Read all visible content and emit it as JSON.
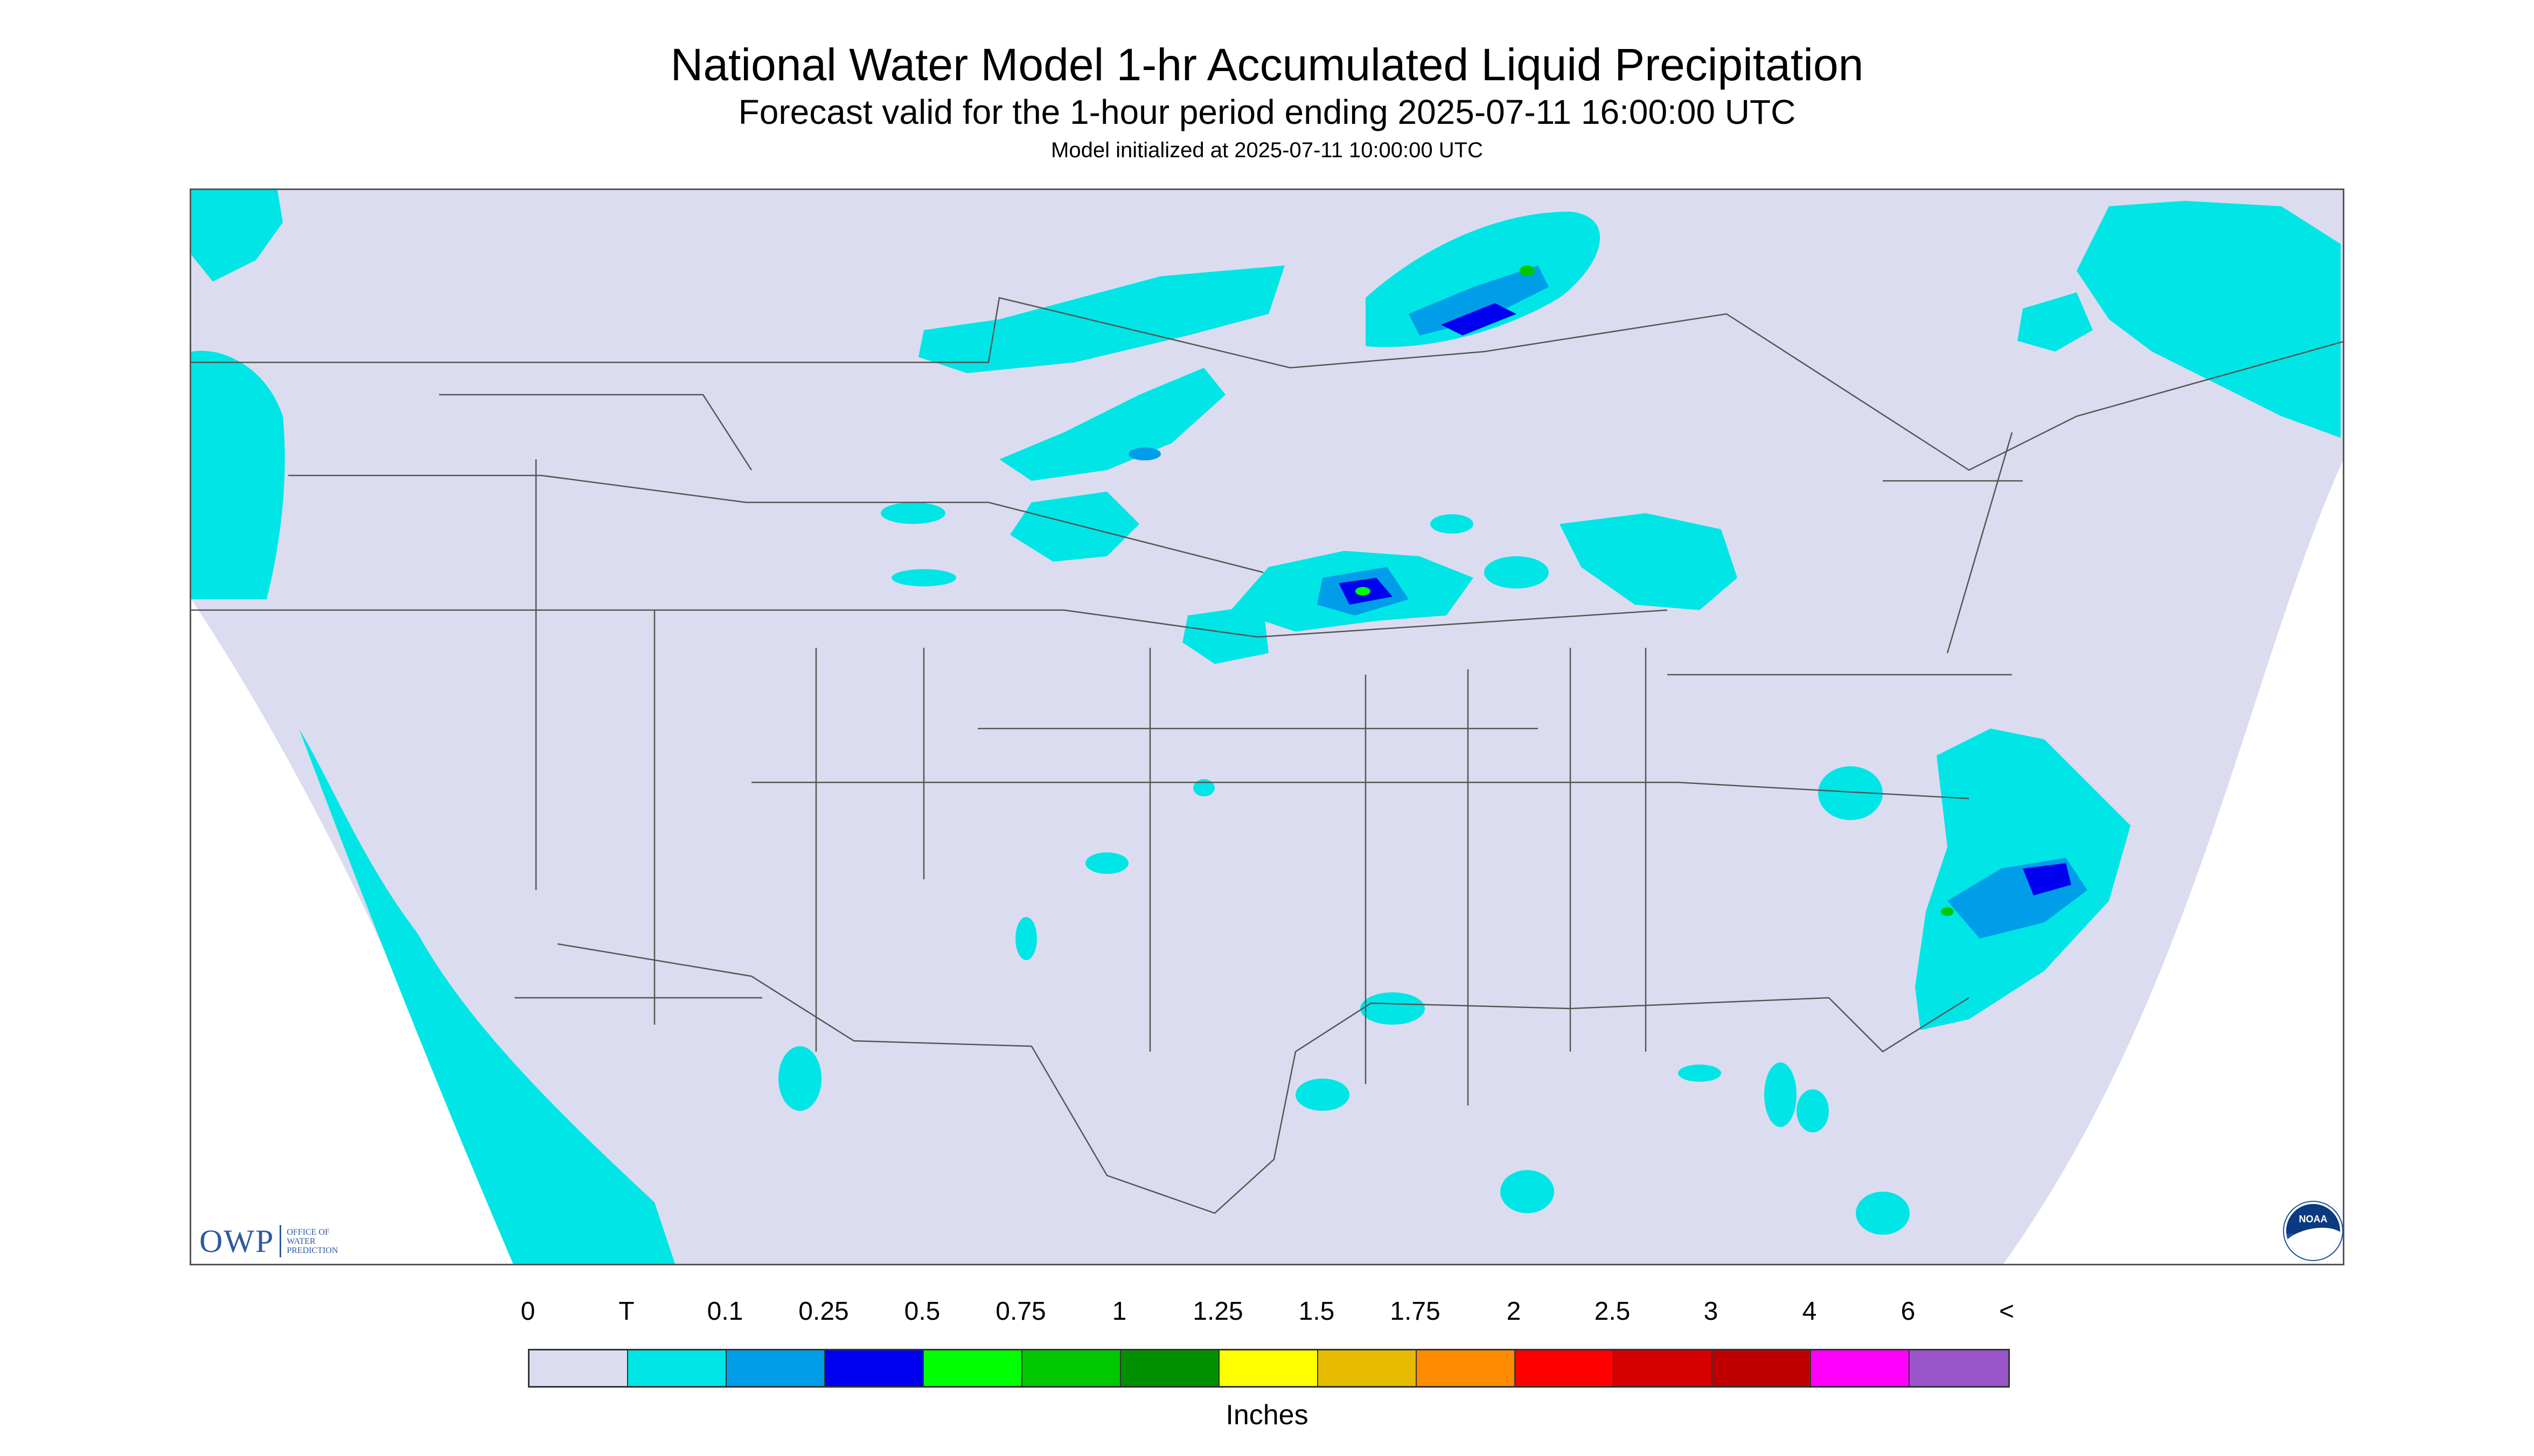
{
  "header": {
    "title": "National Water Model 1-hr Accumulated Liquid Precipitation",
    "subtitle": "Forecast valid for the 1-hour period ending 2025-07-11 16:00:00 UTC",
    "init_line": "Model initialized at 2025-07-11 10:00:00 UTC"
  },
  "logos": {
    "owp_letters": "OWP",
    "owp_small": [
      "OFFICE OF",
      "WATER",
      "PREDICTION"
    ],
    "noaa_text": "NOAA"
  },
  "legend": {
    "labels": [
      "0",
      "T",
      "0.1",
      "0.25",
      "0.5",
      "0.75",
      "1",
      "1.25",
      "1.5",
      "1.75",
      "2",
      "2.5",
      "3",
      "4",
      "6",
      "<"
    ],
    "colors": [
      "#dcdcf0",
      "#00e5e5",
      "#009ee8",
      "#0000f0",
      "#00ff00",
      "#00c800",
      "#009000",
      "#ffff00",
      "#e6bb00",
      "#ff8c00",
      "#ff0000",
      "#d60000",
      "#c00000",
      "#ff00ff",
      "#9955c9"
    ],
    "units": "Inches"
  },
  "map": {
    "background_color": "#dcdcf0",
    "boundary_color": "#555555"
  }
}
